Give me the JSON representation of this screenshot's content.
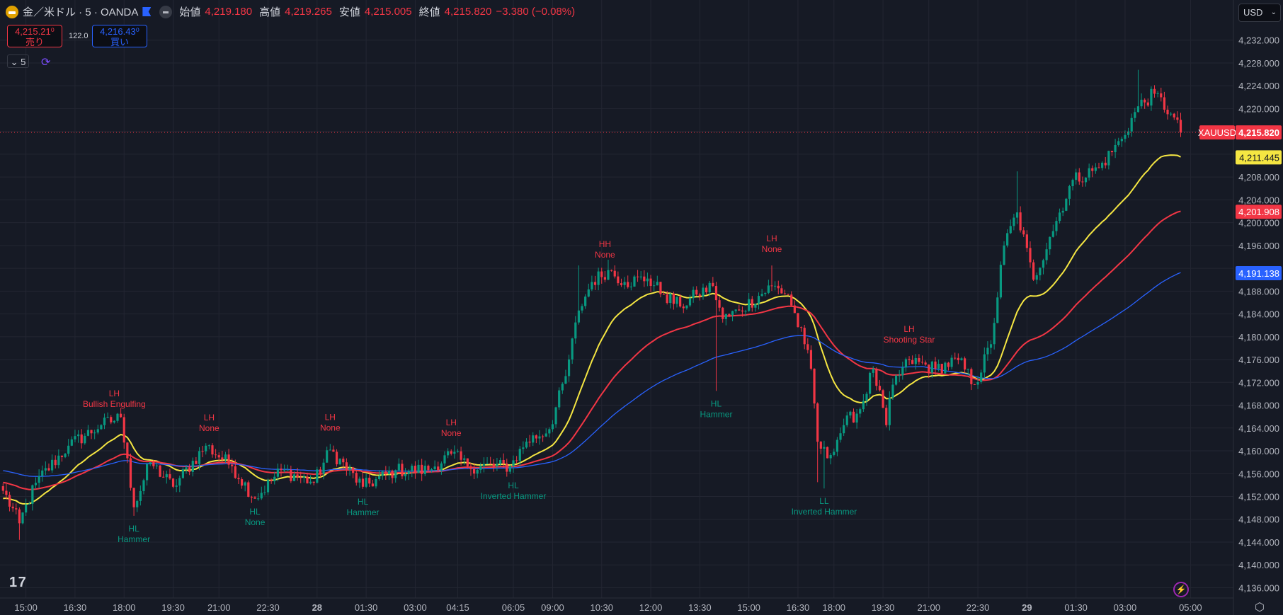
{
  "header": {
    "symbol": "金／米ドル · 5 · OANDA",
    "open_label": "始値",
    "open": "4,219.180",
    "high_label": "高値",
    "high": "4,219.265",
    "low_label": "安値",
    "low": "4,215.005",
    "close_label": "終値",
    "close": "4,215.820",
    "change": "−3.380 (−0.08%)"
  },
  "trade": {
    "sell_price": "4,215.21⁰",
    "sell_label": "売り",
    "spread": "122.0",
    "buy_price": "4,216.43⁰",
    "buy_label": "買い"
  },
  "interval": "5",
  "currency": "USD",
  "logo": "17",
  "colors": {
    "bg": "#161a25",
    "grid": "#232632",
    "up": "#089981",
    "down": "#f23645",
    "ma_fast": "#f5e642",
    "ma_mid": "#f23645",
    "ma_slow": "#2962ff",
    "text": "#b2b5be"
  },
  "chart_data": {
    "type": "candlestick",
    "symbol_tag": "XAUUSD",
    "last_price": 4215.82,
    "last_price_label": "4,215.820",
    "ylim": [
      4134,
      4235
    ],
    "y_ticks": [
      4232,
      4228,
      4224,
      4220,
      4208,
      4204,
      4200,
      4196,
      4188,
      4184,
      4180,
      4176,
      4172,
      4168,
      4164,
      4160,
      4156,
      4152,
      4148,
      4144,
      4140,
      4136
    ],
    "grid": true,
    "bar_count": 361,
    "close_path": [
      [
        0,
        4153.0
      ],
      [
        5,
        4147.3
      ],
      [
        10,
        4154.4
      ],
      [
        20,
        4160.9
      ],
      [
        30,
        4164.5
      ],
      [
        36,
        4165.9
      ],
      [
        38,
        4158.7
      ],
      [
        40,
        4150.1
      ],
      [
        45,
        4158.0
      ],
      [
        52,
        4153.7
      ],
      [
        62,
        4160.9
      ],
      [
        70,
        4157.3
      ],
      [
        77,
        4151.6
      ],
      [
        85,
        4156.6
      ],
      [
        95,
        4154.4
      ],
      [
        100,
        4160.2
      ],
      [
        110,
        4153.7
      ],
      [
        120,
        4156.6
      ],
      [
        130,
        4156.6
      ],
      [
        137,
        4159.5
      ],
      [
        142,
        4157.3
      ],
      [
        155,
        4157.3
      ],
      [
        160,
        4161.6
      ],
      [
        167,
        4163.8
      ],
      [
        172,
        4173.1
      ],
      [
        176,
        4184.6
      ],
      [
        180,
        4189.6
      ],
      [
        185,
        4191.7
      ],
      [
        190,
        4189.6
      ],
      [
        197,
        4190.2
      ],
      [
        202,
        4187.4
      ],
      [
        207,
        4185.3
      ],
      [
        212,
        4187.4
      ],
      [
        217,
        4188.9
      ],
      [
        220,
        4183.1
      ],
      [
        225,
        4184.6
      ],
      [
        235,
        4188.9
      ],
      [
        240,
        4187.4
      ],
      [
        245,
        4178.7
      ],
      [
        247,
        4174.4
      ],
      [
        249,
        4161.6
      ],
      [
        252,
        4158.7
      ],
      [
        257,
        4164.5
      ],
      [
        262,
        4167.3
      ],
      [
        266,
        4174.4
      ],
      [
        270,
        4164.5
      ],
      [
        272,
        4171.6
      ],
      [
        277,
        4175.9
      ],
      [
        285,
        4174.4
      ],
      [
        292,
        4175.9
      ],
      [
        297,
        4171.6
      ],
      [
        302,
        4178.7
      ],
      [
        306,
        4196.0
      ],
      [
        310,
        4201.8
      ],
      [
        315,
        4190.0
      ],
      [
        320,
        4197.5
      ],
      [
        327,
        4207.5
      ],
      [
        335,
        4209.6
      ],
      [
        342,
        4214.7
      ],
      [
        347,
        4220.4
      ],
      [
        352,
        4222.6
      ],
      [
        357,
        4219.1
      ],
      [
        360,
        4215.82
      ]
    ],
    "extreme_wicks": [
      [
        5,
        "low",
        4144.4
      ],
      [
        36,
        "high",
        4167.5
      ],
      [
        40,
        "low",
        4148.6
      ],
      [
        176,
        "high",
        4192.5
      ],
      [
        185,
        "high",
        4193.5
      ],
      [
        218,
        "low",
        4170.5
      ],
      [
        235,
        "high",
        4192.5
      ],
      [
        249,
        "low",
        4154.5
      ],
      [
        251,
        "low",
        4153.4
      ],
      [
        310,
        "high",
        4209.0
      ],
      [
        347,
        "high",
        4226.8
      ]
    ],
    "moving_averages": [
      {
        "color_key": "ma_fast",
        "start": 4151.5,
        "last": 4211.445,
        "last_label": "4,211.445",
        "period": 20
      },
      {
        "color_key": "ma_mid",
        "start": 4154.5,
        "last": 4201.908,
        "last_label": "4,201.908",
        "period": 50
      },
      {
        "color_key": "ma_slow",
        "start": 4156.6,
        "last": 4191.138,
        "last_label": "4,191.138",
        "period": 100
      }
    ],
    "time_ticks": [
      [
        "15:00",
        7
      ],
      [
        "16:30",
        22
      ],
      [
        "18:00",
        37
      ],
      [
        "19:30",
        52
      ],
      [
        "21:00",
        66
      ],
      [
        "22:30",
        81
      ],
      [
        "28",
        96
      ],
      [
        "01:30",
        111
      ],
      [
        "03:00",
        126
      ],
      [
        "04:15",
        139
      ],
      [
        "06:05",
        156
      ],
      [
        "09:00",
        168
      ],
      [
        "10:30",
        183
      ],
      [
        "12:00",
        198
      ],
      [
        "13:30",
        213
      ],
      [
        "15:00",
        228
      ],
      [
        "16:30",
        243
      ],
      [
        "18:00",
        254
      ],
      [
        "19:30",
        269
      ],
      [
        "21:00",
        283
      ],
      [
        "22:30",
        298
      ],
      [
        "29",
        313
      ],
      [
        "01:30",
        328
      ],
      [
        "03:00",
        343
      ],
      [
        "05:00",
        363
      ]
    ],
    "annotations": [
      {
        "bar": 34,
        "side": "above",
        "line1": "LH",
        "line2": "Bullish Engulfing"
      },
      {
        "bar": 63,
        "side": "above",
        "line1": "LH",
        "line2": "None"
      },
      {
        "bar": 100,
        "side": "above",
        "line1": "LH",
        "line2": "None"
      },
      {
        "bar": 137,
        "side": "above",
        "line1": "LH",
        "line2": "None"
      },
      {
        "bar": 184,
        "side": "above",
        "line1": "HH",
        "line2": "None"
      },
      {
        "bar": 235,
        "side": "above",
        "line1": "LH",
        "line2": "None"
      },
      {
        "bar": 277,
        "side": "above",
        "line1": "LH",
        "line2": "Shooting Star"
      },
      {
        "bar": 40,
        "side": "below",
        "line1": "HL",
        "line2": "Hammer"
      },
      {
        "bar": 77,
        "side": "below",
        "line1": "HL",
        "line2": "None"
      },
      {
        "bar": 110,
        "side": "below",
        "line1": "HL",
        "line2": "Hammer"
      },
      {
        "bar": 156,
        "side": "below",
        "line1": "HL",
        "line2": "Inverted Hammer"
      },
      {
        "bar": 218,
        "side": "below",
        "line1": "HL",
        "line2": "Hammer"
      },
      {
        "bar": 251,
        "side": "below",
        "line1": "LL",
        "line2": "Inverted Hammer"
      }
    ]
  }
}
